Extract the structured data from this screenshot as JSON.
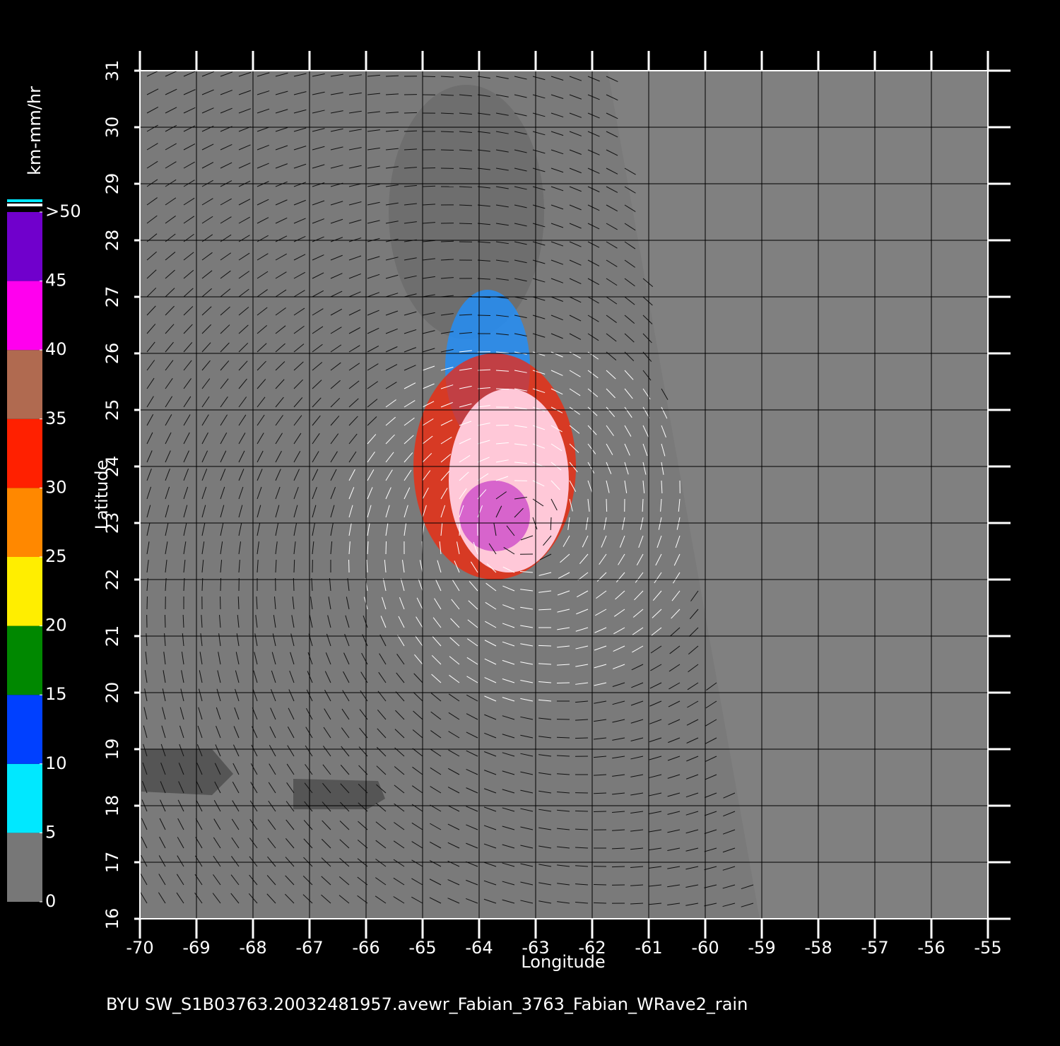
{
  "chart_data": {
    "type": "map",
    "xlabel": "Longitude",
    "ylabel": "Latitude",
    "xlim": [
      -70,
      -55
    ],
    "ylim": [
      16,
      31
    ],
    "xticks": [
      -70,
      -69,
      -68,
      -67,
      -66,
      -65,
      -64,
      -63,
      -62,
      -61,
      -60,
      -59,
      -58,
      -57,
      -56,
      -55
    ],
    "yticks": [
      16,
      17,
      18,
      19,
      20,
      21,
      22,
      23,
      24,
      25,
      26,
      27,
      28,
      29,
      30,
      31
    ],
    "grid": true,
    "colorbar": {
      "label": "km-mm/hr",
      "lim": [
        0,
        50
      ],
      "ticks": [
        0,
        5,
        10,
        15,
        20,
        25,
        30,
        35,
        40,
        45,
        {
          "value": 50,
          "label": ">50"
        }
      ],
      "colors": [
        "#777777",
        "#00e8ff",
        "#0040ff",
        "#008800",
        "#ffee00",
        "#ff8800",
        "#ff2000",
        "#b06a50",
        "#ff00ee",
        "#7000cc"
      ]
    },
    "footer": "BYU  SW_S1B03763.20032481957.avewr_Fabian_3763_Fabian_WRave2_rain"
  }
}
